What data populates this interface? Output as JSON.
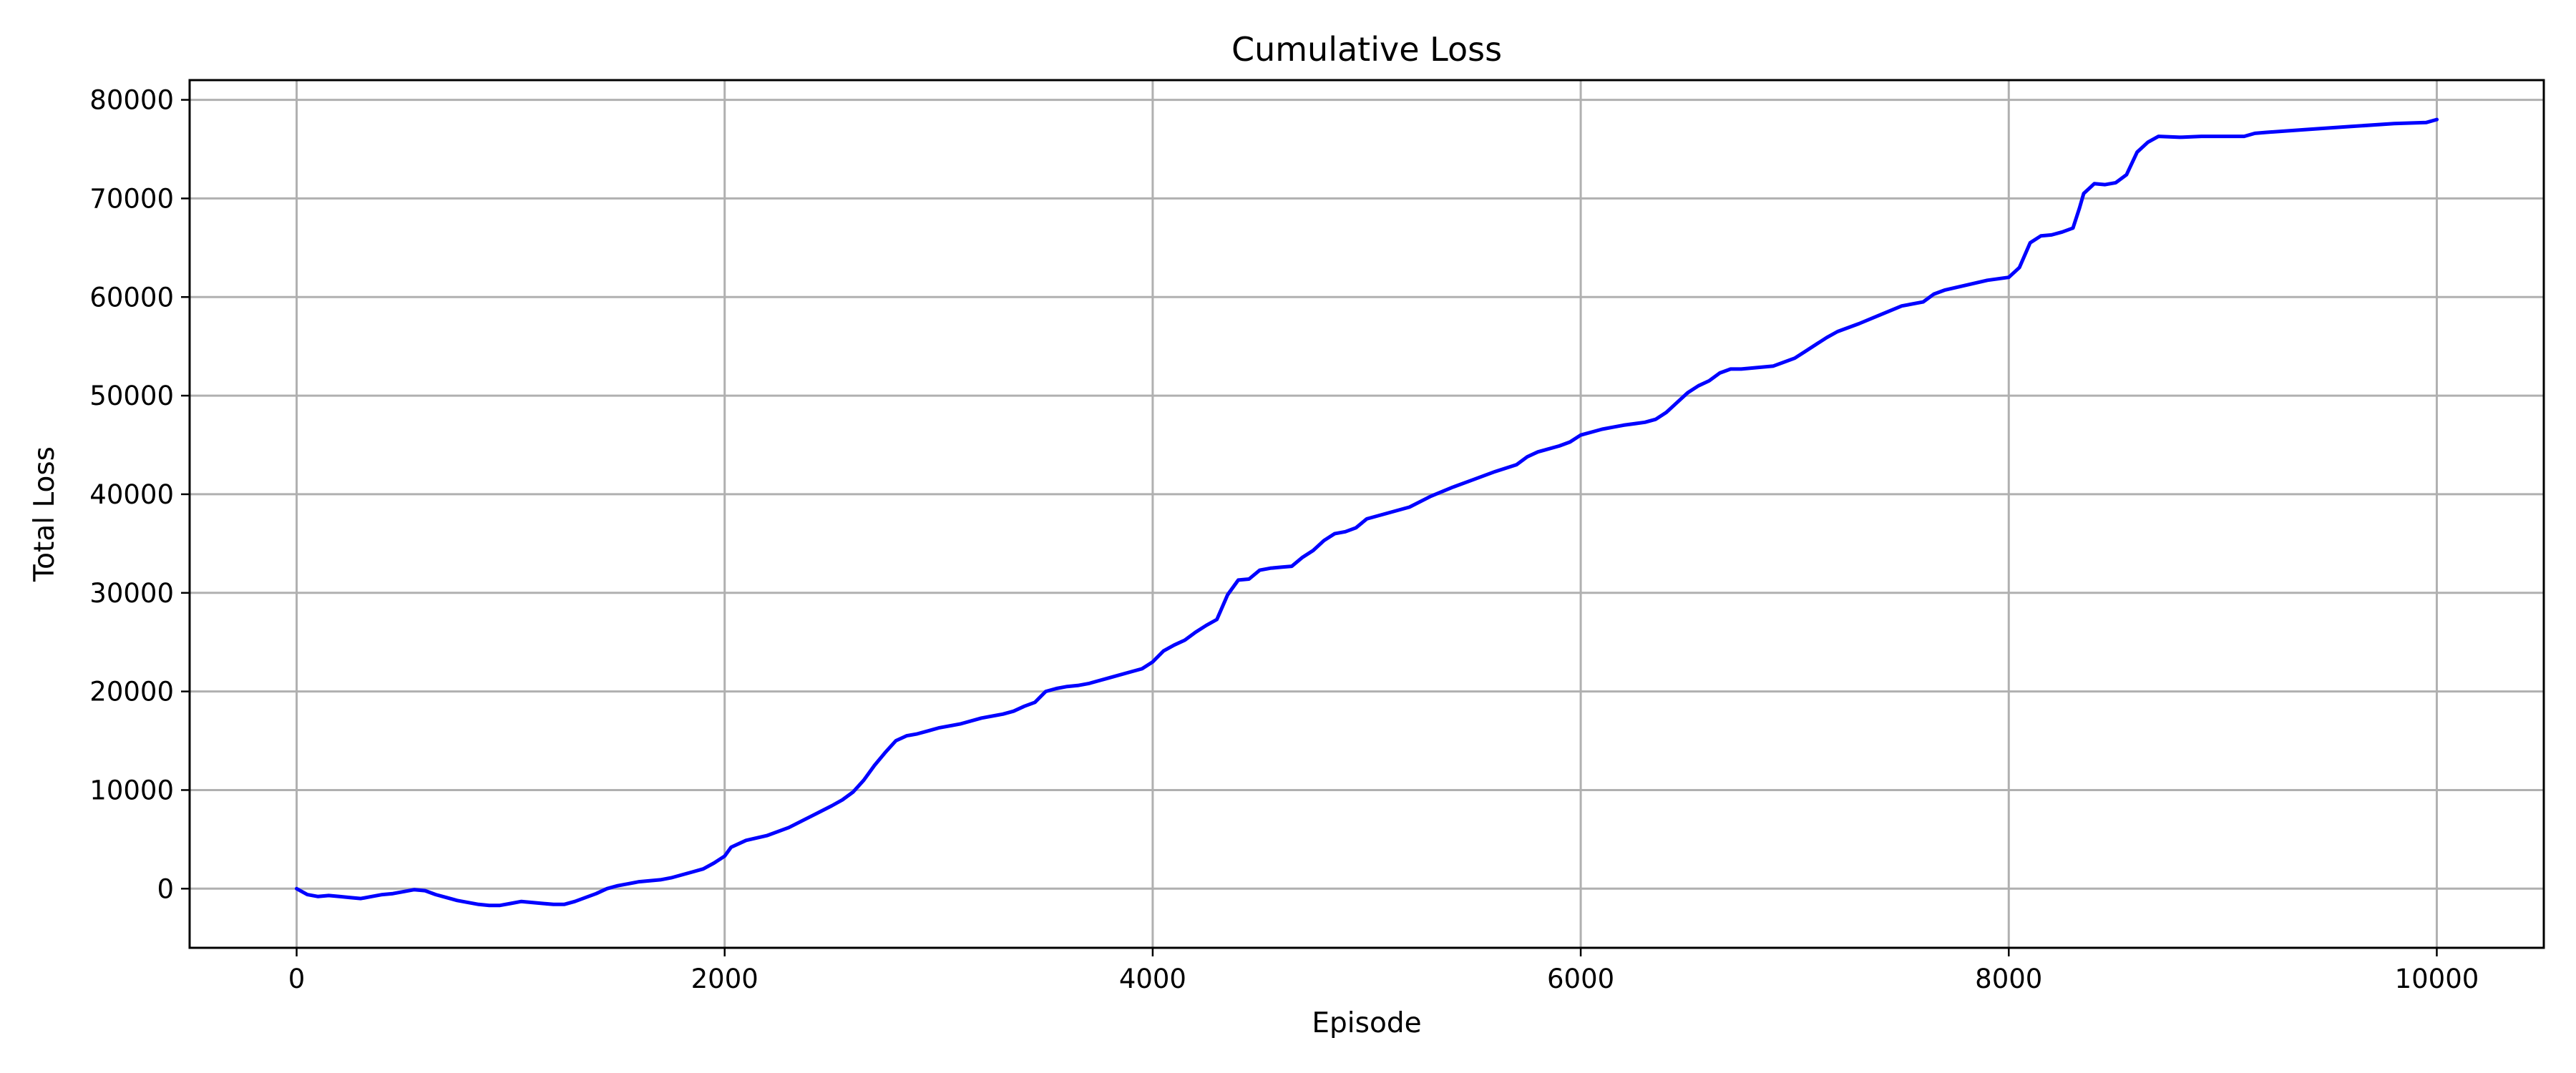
{
  "chart_data": {
    "type": "line",
    "title": "Cumulative Loss",
    "xlabel": "Episode",
    "ylabel": "Total Loss",
    "xlim": [
      -500,
      10500
    ],
    "ylim": [
      -6000,
      82000
    ],
    "xticks": [
      0,
      2000,
      4000,
      6000,
      8000,
      10000
    ],
    "yticks": [
      0,
      10000,
      20000,
      30000,
      40000,
      50000,
      60000,
      70000,
      80000
    ],
    "xtick_labels": [
      "0",
      "2000",
      "4000",
      "6000",
      "8000",
      "10000"
    ],
    "ytick_labels": [
      "0",
      "10000",
      "20000",
      "30000",
      "40000",
      "50000",
      "60000",
      "70000",
      "80000"
    ],
    "grid": true,
    "series": [
      {
        "color": "#0000ff",
        "x": [
          0,
          50,
          100,
          150,
          200,
          250,
          300,
          350,
          400,
          450,
          500,
          550,
          600,
          650,
          700,
          750,
          800,
          850,
          900,
          950,
          1000,
          1050,
          1100,
          1150,
          1200,
          1250,
          1300,
          1350,
          1400,
          1450,
          1500,
          1550,
          1600,
          1650,
          1700,
          1750,
          1800,
          1850,
          1900,
          1950,
          2000,
          2030,
          2100,
          2200,
          2300,
          2400,
          2500,
          2550,
          2600,
          2650,
          2700,
          2750,
          2800,
          2850,
          2900,
          2950,
          3000,
          3100,
          3200,
          3300,
          3350,
          3400,
          3450,
          3500,
          3550,
          3600,
          3650,
          3700,
          3800,
          3900,
          3950,
          4000,
          4050,
          4100,
          4150,
          4200,
          4250,
          4300,
          4350,
          4400,
          4450,
          4500,
          4550,
          4600,
          4650,
          4700,
          4750,
          4800,
          4850,
          4900,
          4950,
          5000,
          5100,
          5200,
          5300,
          5400,
          5500,
          5600,
          5700,
          5750,
          5800,
          5900,
          5950,
          6000,
          6050,
          6100,
          6150,
          6200,
          6300,
          6350,
          6400,
          6450,
          6500,
          6550,
          6600,
          6650,
          6700,
          6750,
          6800,
          6900,
          7000,
          7050,
          7100,
          7150,
          7200,
          7300,
          7400,
          7500,
          7600,
          7650,
          7700,
          7800,
          7900,
          8000,
          8050,
          8100,
          8150,
          8200,
          8250,
          8300,
          8330,
          8350,
          8400,
          8450,
          8500,
          8550,
          8600,
          8650,
          8700,
          8800,
          8900,
          9000,
          9100,
          9150,
          9200,
          9400,
          9600,
          9800,
          9950,
          10000
        ],
        "y": [
          0,
          -600,
          -800,
          -700,
          -800,
          -900,
          -1000,
          -800,
          -600,
          -500,
          -300,
          -100,
          -200,
          -600,
          -900,
          -1200,
          -1400,
          -1600,
          -1700,
          -1700,
          -1500,
          -1300,
          -1400,
          -1500,
          -1600,
          -1600,
          -1300,
          -900,
          -500,
          0,
          300,
          500,
          700,
          800,
          900,
          1100,
          1400,
          1700,
          2000,
          2600,
          3300,
          4200,
          4900,
          5400,
          6200,
          7300,
          8400,
          9000,
          9800,
          11000,
          12500,
          13800,
          15000,
          15500,
          15700,
          16000,
          16300,
          16700,
          17300,
          17700,
          18000,
          18500,
          18900,
          20000,
          20300,
          20500,
          20600,
          20800,
          21400,
          22000,
          22300,
          23000,
          24100,
          24700,
          25200,
          26000,
          26700,
          27300,
          29800,
          31300,
          31400,
          32300,
          32500,
          32600,
          32700,
          33600,
          34300,
          35300,
          36000,
          36200,
          36600,
          37500,
          38100,
          38700,
          39800,
          40700,
          41500,
          42300,
          43000,
          43800,
          44300,
          44900,
          45300,
          46000,
          46300,
          46600,
          46800,
          47000,
          47300,
          47600,
          48300,
          49300,
          50300,
          51000,
          51500,
          52300,
          52700,
          52700,
          52800,
          53000,
          53800,
          54500,
          55200,
          55900,
          56500,
          57300,
          58200,
          59100,
          59500,
          60300,
          60700,
          61200,
          61700,
          62000,
          63000,
          65500,
          66200,
          66300,
          66600,
          67000,
          69000,
          70500,
          71500,
          71400,
          71600,
          72400,
          74700,
          75700,
          76300,
          76200,
          76300,
          76300,
          76300,
          76600,
          76700,
          77000,
          77300,
          77600,
          77700,
          78000
        ]
      }
    ]
  }
}
